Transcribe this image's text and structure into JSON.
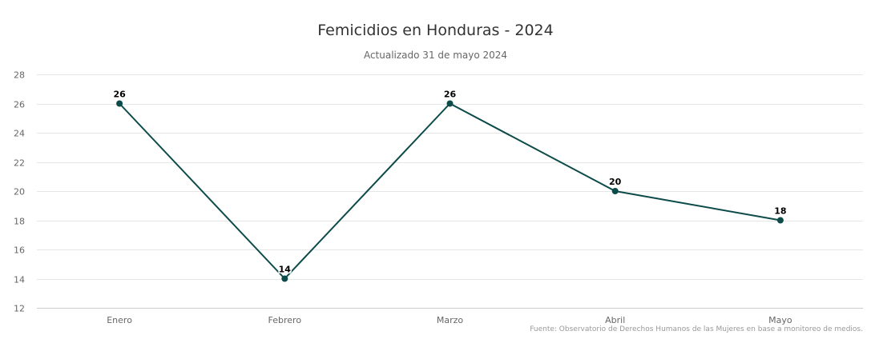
{
  "chart_data": {
    "type": "line",
    "title": "Femicidios en Honduras - 2024",
    "subtitle": "Actualizado 31 de mayo 2024",
    "xlabel": "",
    "ylabel": "",
    "categories": [
      "Enero",
      "Febrero",
      "Marzo",
      "Abril",
      "Mayo"
    ],
    "series": [
      {
        "values": [
          26,
          14,
          26,
          20,
          18
        ]
      }
    ],
    "ylim": [
      12,
      28
    ],
    "yticks": [
      12,
      14,
      16,
      18,
      20,
      22,
      24,
      26,
      28
    ],
    "grid": true,
    "legend": "none",
    "data_labels": true,
    "colors": {
      "line": "#0d4a4a",
      "grid": "#e6e6e6",
      "axis": "#cccccc"
    }
  },
  "credits": "Fuente: Observatorio de Derechos Humanos de las Mujeres en base a monitoreo de medios."
}
